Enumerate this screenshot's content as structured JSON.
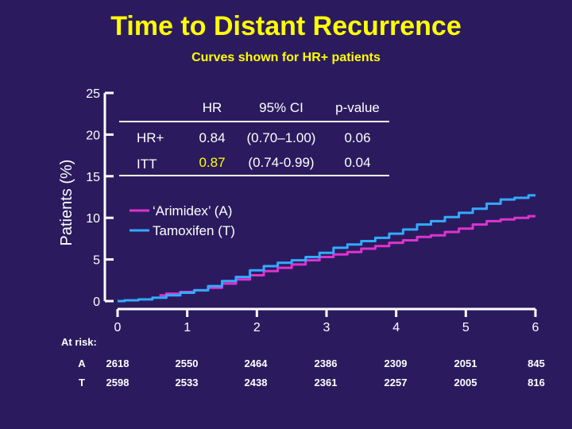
{
  "title": "Time to Distant Recurrence",
  "subtitle": "Curves shown for HR+ patients",
  "colors": {
    "background": "#2b1b5e",
    "title": "#ffff00",
    "arimidex": "#dd33cc",
    "tamoxifen": "#33aaff",
    "axis": "#ffffff",
    "highlight": "#ffff00"
  },
  "stats_table": {
    "headers": [
      "",
      "HR",
      "95% CI",
      "p-value"
    ],
    "rows": [
      {
        "label": "HR+",
        "hr": "0.84",
        "ci": "(0.70–1.00)",
        "p": "0.06",
        "highlight": false
      },
      {
        "label": "ITT",
        "hr": "0.87",
        "ci": "(0.74-0.99)",
        "p": "0.04",
        "highlight": true
      }
    ]
  },
  "at_risk": {
    "label": "At risk:",
    "rows": [
      {
        "label": "A",
        "values": [
          "2618",
          "2550",
          "2464",
          "2386",
          "2309",
          "2051",
          "845"
        ]
      },
      {
        "label": "T",
        "values": [
          "2598",
          "2533",
          "2438",
          "2361",
          "2257",
          "2005",
          "816"
        ]
      }
    ]
  },
  "chart_data": {
    "type": "line",
    "title": "",
    "xlabel": "",
    "ylabel": "Patients (%)",
    "xlim": [
      0,
      6
    ],
    "ylim": [
      0,
      25
    ],
    "x_ticks": [
      "0",
      "1",
      "2",
      "3",
      "4",
      "5",
      "6"
    ],
    "y_ticks": [
      "0",
      "5",
      "10",
      "15",
      "20",
      "25"
    ],
    "legend_position": "center-left",
    "series": [
      {
        "name": "‘Arimidex’ (A)",
        "color": "#dd33cc",
        "x": [
          0.6,
          0.8,
          1.0,
          1.2,
          1.4,
          1.6,
          1.8,
          2.0,
          2.2,
          2.4,
          2.6,
          2.8,
          3.0,
          3.2,
          3.4,
          3.6,
          3.8,
          4.0,
          4.2,
          4.4,
          4.6,
          4.8,
          5.0,
          5.2,
          5.4,
          5.6,
          5.8,
          6.0
        ],
        "values": [
          0.7,
          0.9,
          1.1,
          1.3,
          1.6,
          2.1,
          2.6,
          3.1,
          3.6,
          4.0,
          4.4,
          4.9,
          5.3,
          5.6,
          5.9,
          6.3,
          6.6,
          7.0,
          7.3,
          7.7,
          7.9,
          8.3,
          8.7,
          9.2,
          9.6,
          9.8,
          10.0,
          10.2
        ]
      },
      {
        "name": "Tamoxifen (T)",
        "color": "#33aaff",
        "x": [
          0.0,
          0.2,
          0.4,
          0.6,
          0.8,
          1.0,
          1.2,
          1.4,
          1.6,
          1.8,
          2.0,
          2.2,
          2.4,
          2.6,
          2.8,
          3.0,
          3.2,
          3.4,
          3.6,
          3.8,
          4.0,
          4.2,
          4.4,
          4.6,
          4.8,
          5.0,
          5.2,
          5.4,
          5.6,
          5.8,
          6.0
        ],
        "values": [
          0.0,
          0.1,
          0.2,
          0.4,
          0.7,
          1.0,
          1.3,
          1.8,
          2.4,
          2.9,
          3.7,
          4.2,
          4.6,
          4.9,
          5.3,
          5.8,
          6.4,
          6.8,
          7.2,
          7.6,
          8.1,
          8.6,
          9.2,
          9.6,
          10.1,
          10.6,
          11.1,
          11.7,
          12.2,
          12.4,
          12.7
        ]
      }
    ]
  }
}
